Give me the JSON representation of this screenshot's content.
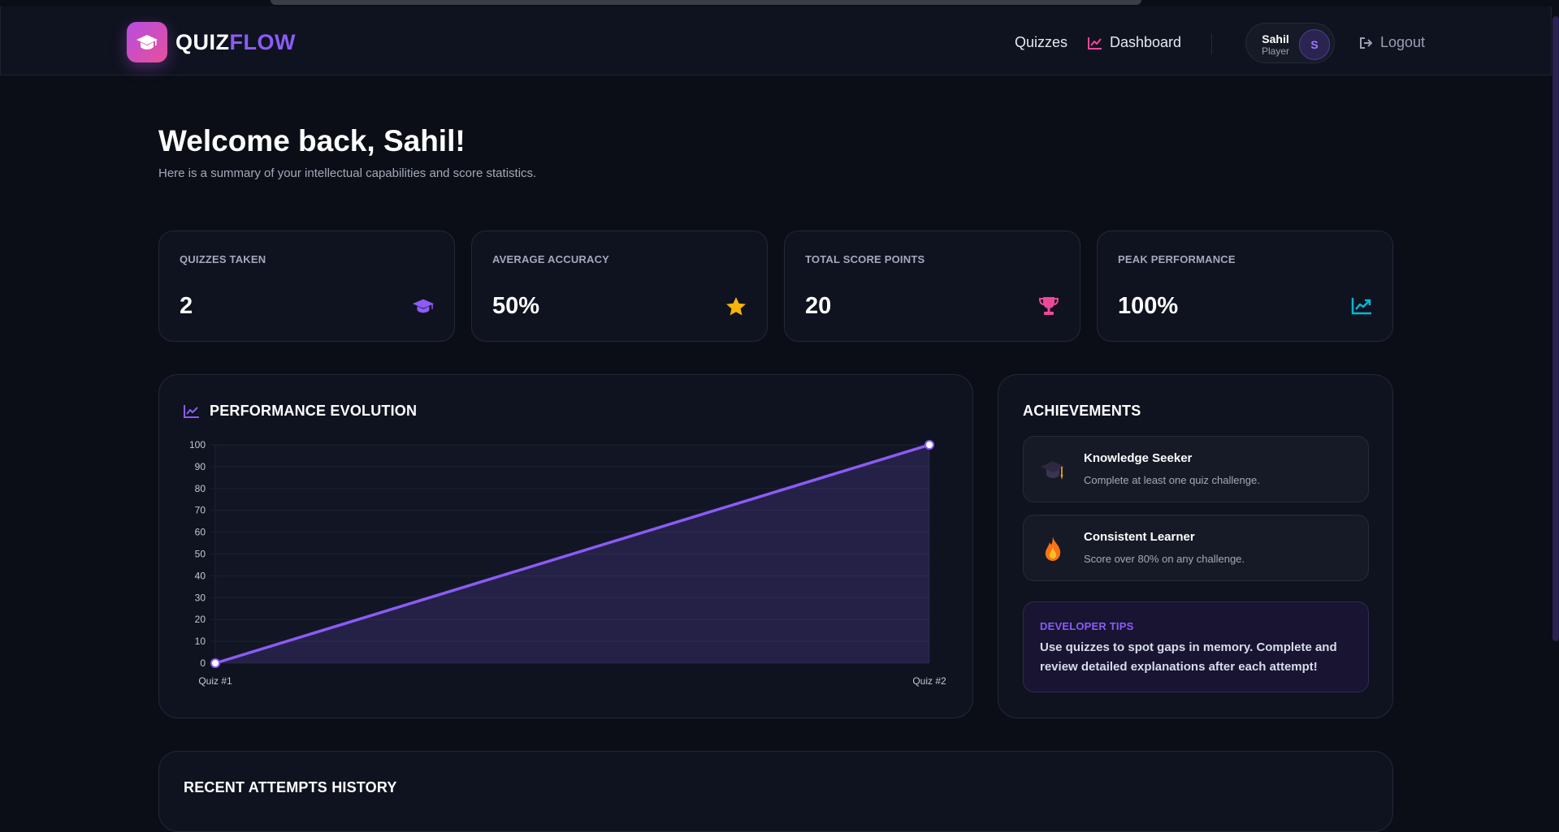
{
  "brand": {
    "part1": "QUIZ",
    "part2": "FLOW",
    "icon": "graduation-cap-icon"
  },
  "nav": {
    "quizzes": "Quizzes",
    "dashboard": "Dashboard",
    "dashboard_icon": "trend-chart-icon",
    "logout": "Logout",
    "logout_icon": "logout-icon"
  },
  "user": {
    "name": "Sahil",
    "role": "Player",
    "initial": "S"
  },
  "welcome": {
    "title": "Welcome back, Sahil!",
    "subtitle": "Here is a summary of your intellectual capabilities and score statistics."
  },
  "stats": [
    {
      "label": "QUIZZES TAKEN",
      "value": "2",
      "icon": "graduation-cap-icon",
      "color": "#8b5cf6"
    },
    {
      "label": "AVERAGE ACCURACY",
      "value": "50%",
      "icon": "star-icon",
      "color": "#f5b40b"
    },
    {
      "label": "TOTAL SCORE POINTS",
      "value": "20",
      "icon": "trophy-icon",
      "color": "#ec4899"
    },
    {
      "label": "PEAK PERFORMANCE",
      "value": "100%",
      "icon": "trend-chart-icon",
      "color": "#06b6d4"
    }
  ],
  "performance": {
    "title": "PERFORMANCE EVOLUTION",
    "icon": "trend-chart-icon"
  },
  "chart_data": {
    "type": "area",
    "categories": [
      "Quiz #1",
      "Quiz #2"
    ],
    "values": [
      0,
      100
    ],
    "ylim": [
      0,
      100
    ],
    "yticks": [
      0,
      10,
      20,
      30,
      40,
      50,
      60,
      70,
      80,
      90,
      100
    ],
    "grid": true,
    "color": "#8b5cf6"
  },
  "achievements": {
    "title": "ACHIEVEMENTS",
    "items": [
      {
        "title": "Knowledge Seeker",
        "desc": "Complete at least one quiz challenge.",
        "icon": "graduation-cap-icon"
      },
      {
        "title": "Consistent Learner",
        "desc": "Score over 80% on any challenge.",
        "icon": "fire-icon"
      }
    ],
    "tips": {
      "title": "DEVELOPER TIPS",
      "text": "Use quizzes to spot gaps in memory. Complete and review detailed explanations after each attempt!"
    }
  },
  "history": {
    "title": "RECENT ATTEMPTS HISTORY"
  },
  "colors": {
    "accent": "#8b5cf6",
    "background": "#0b0e16",
    "card": "#0f1320",
    "pink": "#ec4899"
  }
}
